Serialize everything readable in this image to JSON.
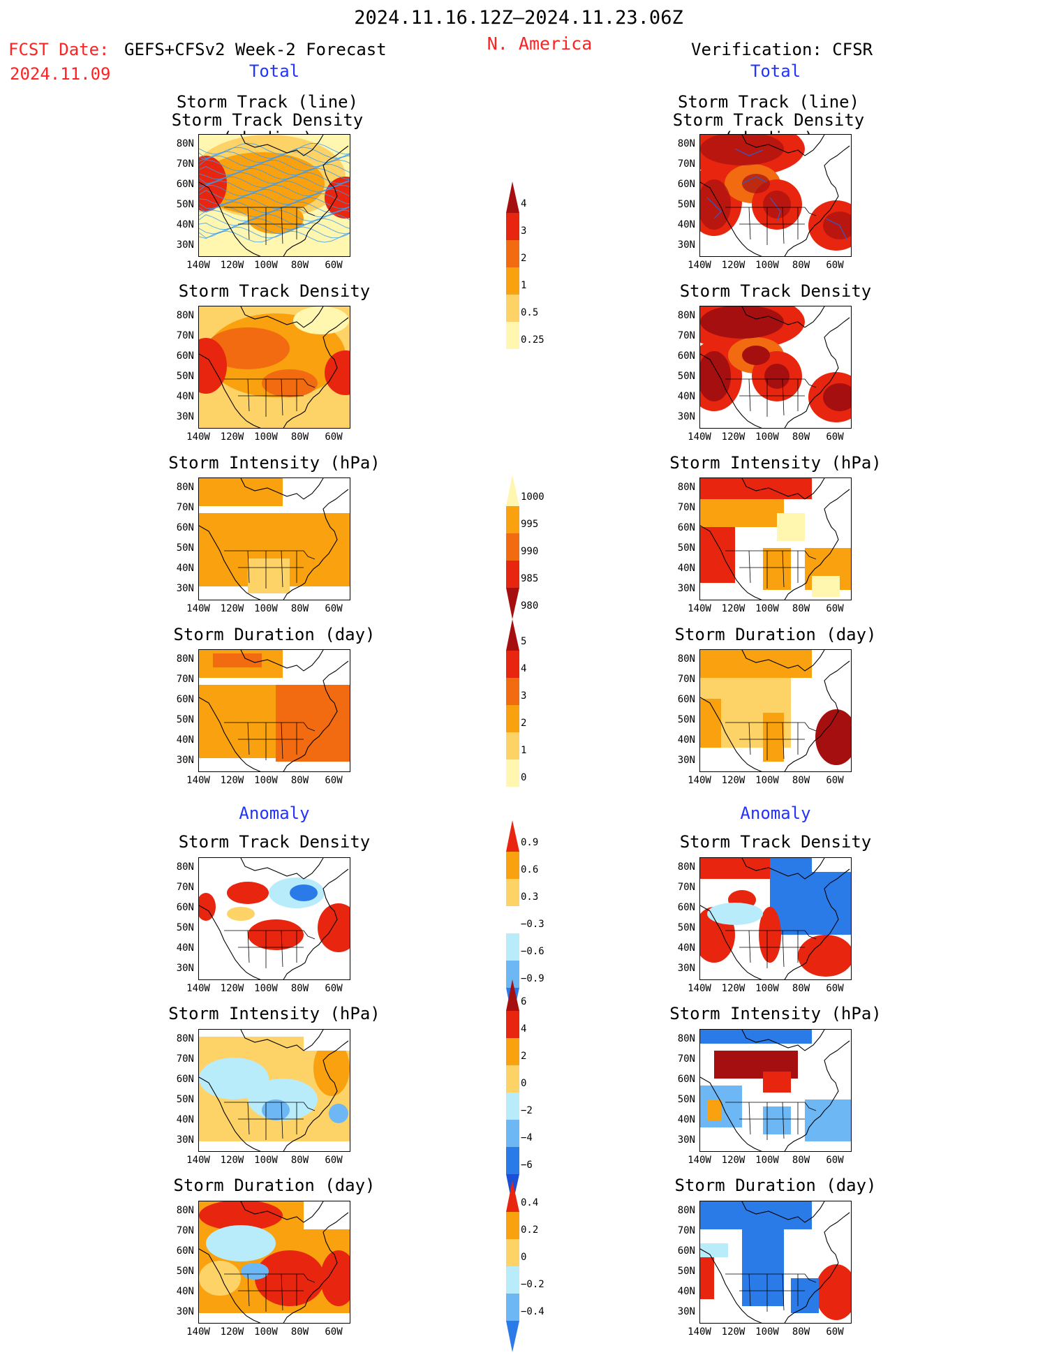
{
  "header": {
    "period": "2024.11.16.12Z‒2024.11.23.06Z",
    "region": "N. America",
    "fcst_date_label": "FCST Date:",
    "fcst_date_value": "2024.11.09",
    "forecast_title": "GEFS+CFSv2 Week-2 Forecast",
    "verification_title": "Verification: CFSR",
    "total_left": "Total",
    "total_right": "Total",
    "anomaly_left": "Anomaly",
    "anomaly_right": "Anomaly"
  },
  "panel_titles": {
    "track_line": "Storm Track (line)",
    "track_shading": "Storm Track Density (shading)",
    "density": "Storm Track Density",
    "intensity": "Storm Intensity (hPa)",
    "duration": "Storm Duration (day)"
  },
  "axes": {
    "lat_labels": [
      "80N",
      "70N",
      "60N",
      "50N",
      "40N",
      "30N"
    ],
    "lon_labels": [
      "140W",
      "120W",
      "100W",
      "80W",
      "60W"
    ]
  },
  "colorbars": {
    "density_total": [
      "4",
      "3",
      "2",
      "1",
      "0.5",
      "0.25"
    ],
    "intensity_total": [
      "1000",
      "995",
      "990",
      "985",
      "980"
    ],
    "duration_total": [
      "5",
      "4",
      "3",
      "2",
      "1",
      "0"
    ],
    "density_anom": [
      "0.9",
      "0.6",
      "0.3",
      "−0.3",
      "−0.6",
      "−0.9"
    ],
    "intensity_anom": [
      "6",
      "4",
      "2",
      "0",
      "−2",
      "−4",
      "−6"
    ],
    "duration_anom": [
      "0.4",
      "0.2",
      "0",
      "−0.2",
      "−0.4"
    ]
  },
  "colors": {
    "dark_red": "#a50f0f",
    "red": "#e8250e",
    "orange_red": "#f26b10",
    "orange": "#f9a10e",
    "light_orange": "#fdd368",
    "pale_yellow": "#fff6b0",
    "light_blue": "#b8ecfb",
    "mid_blue": "#6cb7f4",
    "blue": "#2a7be8",
    "dark_blue": "#1a4fd6",
    "track_line_forecast": "#3a9bf0",
    "track_line_obs": "#3d56b8"
  }
}
